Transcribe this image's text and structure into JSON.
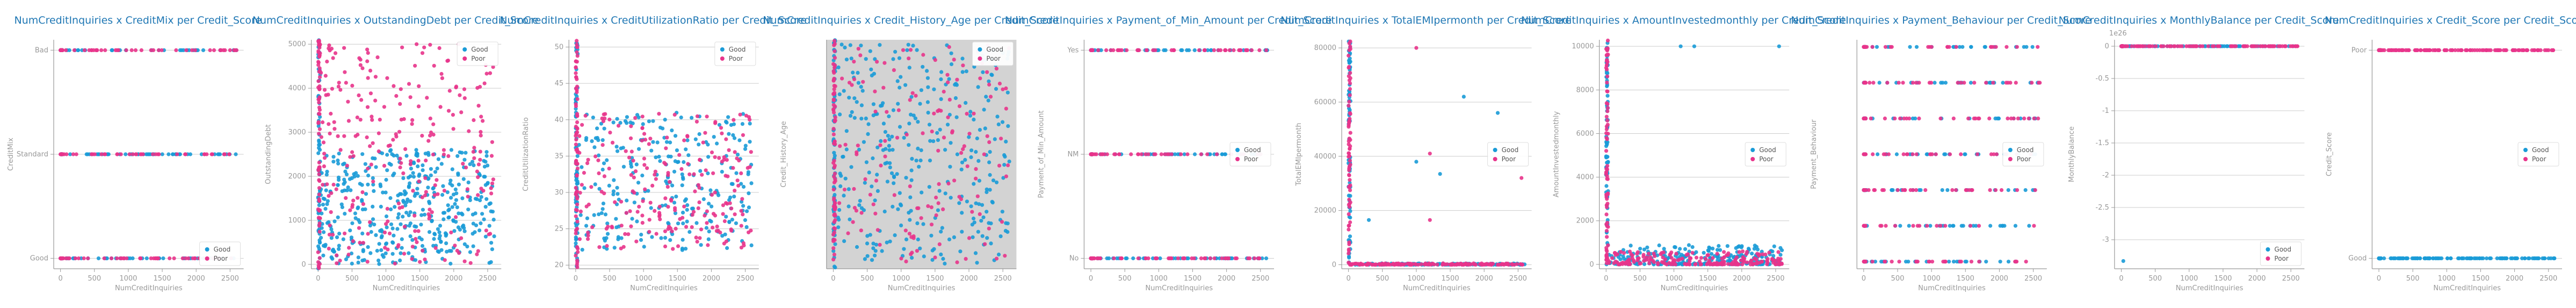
{
  "colors": {
    "good": "#1a9bd7",
    "poor": "#e8348b",
    "title": "#1f77b4",
    "axis": "#999999",
    "grid": "#cccccc",
    "shaded_bg": "#d3d3d3"
  },
  "chart_data": [
    {
      "type": "scatter",
      "title": "NumCreditInquiries x CreditMix per Credit_Score",
      "xlabel": "NumCreditInquiries",
      "ylabel": "CreditMix",
      "xlim": [
        -100,
        2700
      ],
      "xticks": [
        0,
        500,
        1000,
        1500,
        2000,
        2500
      ],
      "ylim": [
        -0.1,
        2.1
      ],
      "yticks": [
        {
          "v": 0,
          "label": "Good"
        },
        {
          "v": 1,
          "label": "Standard"
        },
        {
          "v": 2,
          "label": "Bad"
        }
      ],
      "grid": true,
      "legend": "bottom-right",
      "series": [
        {
          "name": "Good",
          "pattern": "cat",
          "values": [
            0,
            1,
            2
          ],
          "n": 120,
          "seed": 11
        },
        {
          "name": "Poor",
          "pattern": "cat",
          "values": [
            0,
            1,
            2
          ],
          "n": 120,
          "seed": 12
        }
      ]
    },
    {
      "type": "scatter",
      "title": "NumCreditInquiries x OutstandingDebt per Credit_Score",
      "xlabel": "NumCreditInquiries",
      "ylabel": "OutstandingDebt",
      "xlim": [
        -100,
        2700
      ],
      "xticks": [
        0,
        500,
        1000,
        1500,
        2000,
        2500
      ],
      "ylim": [
        -100,
        5100
      ],
      "yticks": [
        0,
        1000,
        2000,
        3000,
        4000,
        5000
      ],
      "grid": true,
      "legend": "top-right",
      "series": [
        {
          "name": "Good",
          "pattern": "cloud",
          "ymin": 0,
          "ymax": 2600,
          "n": 420,
          "seed": 21
        },
        {
          "name": "Poor",
          "pattern": "cloud",
          "ymin": 0,
          "ymax": 5000,
          "n": 260,
          "seed": 22
        }
      ]
    },
    {
      "type": "scatter",
      "title": "NumCreditInquiries x CreditUtilizationRatio per Credit_Score",
      "xlabel": "NumCreditInquiries",
      "ylabel": "CreditUtilizationRatio",
      "xlim": [
        -100,
        2700
      ],
      "xticks": [
        0,
        500,
        1000,
        1500,
        2000,
        2500
      ],
      "ylim": [
        19.5,
        51
      ],
      "yticks": [
        20,
        25,
        30,
        35,
        40,
        45,
        50
      ],
      "grid": true,
      "legend": "top-right",
      "series": [
        {
          "name": "Good",
          "pattern": "cloud",
          "ymin": 22,
          "ymax": 41,
          "n": 260,
          "seed": 31
        },
        {
          "name": "Poor",
          "pattern": "cloud",
          "ymin": 22,
          "ymax": 41,
          "n": 220,
          "seed": 32
        }
      ]
    },
    {
      "type": "scatter",
      "title": "NumCreditInquiries x Credit_History_Age per Credit_Score",
      "xlabel": "NumCreditInquiries",
      "ylabel": "Credit_History_Age",
      "xlim": [
        -100,
        2700
      ],
      "xticks": [
        0,
        500,
        1000,
        1500,
        2000,
        2500
      ],
      "ylim": [
        0,
        1
      ],
      "yticks": [],
      "grid": false,
      "shaded": true,
      "legend": "top-right",
      "series": [
        {
          "name": "Good",
          "pattern": "cloud",
          "ymin": 0.02,
          "ymax": 0.98,
          "n": 320,
          "seed": 41
        },
        {
          "name": "Poor",
          "pattern": "cloud",
          "ymin": 0.02,
          "ymax": 0.98,
          "n": 140,
          "seed": 42
        }
      ]
    },
    {
      "type": "scatter",
      "title": "NumCreditInquiries x Payment_of_Min_Amount per Credit_Score",
      "xlabel": "NumCreditInquiries",
      "ylabel": "Payment_of_Min_Amount",
      "xlim": [
        -100,
        2700
      ],
      "xticks": [
        0,
        500,
        1000,
        1500,
        2000,
        2500
      ],
      "ylim": [
        -0.1,
        2.1
      ],
      "yticks": [
        {
          "v": 0,
          "label": "No"
        },
        {
          "v": 1,
          "label": "NM"
        },
        {
          "v": 2,
          "label": "Yes"
        }
      ],
      "grid": true,
      "legend": "center-right",
      "series": [
        {
          "name": "Good",
          "pattern": "cat",
          "values": [
            0,
            1,
            2
          ],
          "n": 120,
          "seed": 51
        },
        {
          "name": "Poor",
          "pattern": "cat",
          "values": [
            0,
            1,
            2
          ],
          "n": 120,
          "seed": 52
        }
      ]
    },
    {
      "type": "scatter",
      "title": "NumCreditInquiries x TotalEMIpermonth per Credit_Score",
      "xlabel": "NumCreditInquiries",
      "ylabel": "TotalEMIpermonth",
      "xlim": [
        -100,
        2700
      ],
      "xticks": [
        0,
        500,
        1000,
        1500,
        2000,
        2500
      ],
      "ylim": [
        -1500,
        83000
      ],
      "yticks": [
        0,
        20000,
        40000,
        60000,
        80000
      ],
      "grid": true,
      "legend": "center-right",
      "series": [
        {
          "name": "Good",
          "pattern": "floor",
          "ymax": 500,
          "n": 150,
          "seed": 61,
          "extra": [
            [
              1000,
              38000
            ],
            [
              1350,
              33500
            ],
            [
              2200,
              56000
            ],
            [
              300,
              16500
            ],
            [
              1700,
              62000
            ]
          ]
        },
        {
          "name": "Poor",
          "pattern": "floor",
          "ymax": 500,
          "n": 150,
          "seed": 62,
          "extra": [
            [
              1000,
              80000
            ],
            [
              1200,
              41000
            ],
            [
              1200,
              16500
            ],
            [
              2550,
              32000
            ]
          ]
        }
      ]
    },
    {
      "type": "scatter",
      "title": "NumCreditInquiries x AmountInvestedmonthly per Credit_Score",
      "xlabel": "NumCreditInquiries",
      "ylabel": "AmountInvestedmonthly",
      "xlim": [
        -100,
        2700
      ],
      "xticks": [
        0,
        500,
        1000,
        1500,
        2000,
        2500
      ],
      "ylim": [
        -200,
        10300
      ],
      "yticks": [
        0,
        2000,
        4000,
        6000,
        8000,
        10000
      ],
      "grid": true,
      "legend": "center-right",
      "series": [
        {
          "name": "Good",
          "pattern": "floor",
          "ymax": 900,
          "n": 260,
          "seed": 71,
          "extra": [
            [
              1100,
              10000
            ],
            [
              1300,
              10000
            ],
            [
              2550,
              10000
            ]
          ]
        },
        {
          "name": "Poor",
          "pattern": "floor",
          "ymax": 600,
          "n": 200,
          "seed": 72,
          "extra": []
        }
      ]
    },
    {
      "type": "scatter",
      "title": "NumCreditInquiries x Payment_Behaviour per Credit_Score",
      "xlabel": "NumCreditInquiries",
      "ylabel": "Payment_Behaviour",
      "xlim": [
        -100,
        2700
      ],
      "xticks": [
        0,
        500,
        1000,
        1500,
        2000,
        2500
      ],
      "ylim": [
        -0.2,
        6.2
      ],
      "yticks": [],
      "grid": true,
      "legend": "center-right",
      "series": [
        {
          "name": "Good",
          "pattern": "cat",
          "values": [
            0,
            1,
            2,
            3,
            4,
            5,
            6
          ],
          "n": 150,
          "seed": 81
        },
        {
          "name": "Poor",
          "pattern": "cat",
          "values": [
            0,
            1,
            2,
            3,
            4,
            5,
            6
          ],
          "n": 150,
          "seed": 82
        }
      ]
    },
    {
      "type": "scatter",
      "title": "NumCreditInquiries x MonthlyBalance per Credit_Score",
      "xlabel": "NumCreditInquiries",
      "ylabel": "MonthlyBalance",
      "offset_text": "1e26",
      "xlim": [
        -100,
        2700
      ],
      "xticks": [
        0,
        500,
        1000,
        1500,
        2000,
        2500
      ],
      "ylim": [
        -3.45,
        0.1
      ],
      "yticks": [
        0.0,
        -0.5,
        -1.0,
        -1.5,
        -2.0,
        -2.5,
        -3.0
      ],
      "grid": true,
      "legend": "bottom-right",
      "series": [
        {
          "name": "Good",
          "pattern": "line",
          "value": 0.0,
          "n": 90,
          "seed": 91,
          "extra": [
            [
              30,
              -3.33
            ]
          ]
        },
        {
          "name": "Poor",
          "pattern": "line",
          "value": 0.0,
          "n": 90,
          "seed": 92,
          "extra": []
        }
      ]
    },
    {
      "type": "scatter",
      "title": "NumCreditInquiries x Credit_Score per Credit_Score",
      "xlabel": "NumCreditInquiries",
      "ylabel": "Credit_Score",
      "xlim": [
        -100,
        2700
      ],
      "xticks": [
        0,
        500,
        1000,
        1500,
        2000,
        2500
      ],
      "ylim": [
        -0.05,
        1.05
      ],
      "yticks": [
        {
          "v": 0,
          "label": "Good"
        },
        {
          "v": 1,
          "label": "Poor"
        }
      ],
      "grid": true,
      "legend": "center-right",
      "series": [
        {
          "name": "Good",
          "pattern": "cat",
          "values": [
            0
          ],
          "n": 110,
          "seed": 101
        },
        {
          "name": "Poor",
          "pattern": "cat",
          "values": [
            1
          ],
          "n": 110,
          "seed": 102
        }
      ]
    }
  ]
}
